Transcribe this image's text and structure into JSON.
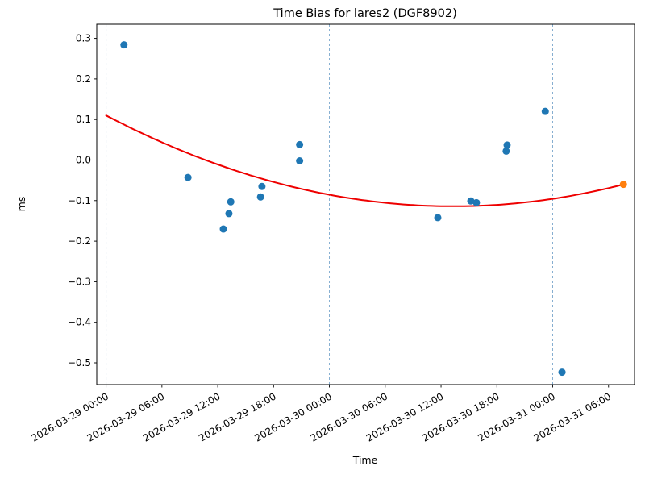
{
  "colors": {
    "point_blue": "#1f77b4",
    "point_orange": "#ff7f0e",
    "fit_red": "#ee0000",
    "day_line": "#7aa6cc",
    "zero_line": "#000000",
    "spine": "#000000"
  },
  "chart_data": {
    "type": "scatter",
    "title": "Time Bias for lares2 (DGF8902)",
    "xlabel": "Time",
    "ylabel": "ms",
    "grid": "vertical dashed lines at day boundaries only",
    "legend": "none",
    "x_axis": {
      "epoch": "2026-03-29 00:00",
      "tick_interval_hours": 6,
      "ticks": [
        {
          "label": "2026-03-29 00:00",
          "hours": 0
        },
        {
          "label": "2026-03-29 06:00",
          "hours": 6
        },
        {
          "label": "2026-03-29 12:00",
          "hours": 12
        },
        {
          "label": "2026-03-29 18:00",
          "hours": 18
        },
        {
          "label": "2026-03-30 00:00",
          "hours": 24
        },
        {
          "label": "2026-03-30 06:00",
          "hours": 30
        },
        {
          "label": "2026-03-30 12:00",
          "hours": 36
        },
        {
          "label": "2026-03-30 18:00",
          "hours": 42
        },
        {
          "label": "2026-03-31 00:00",
          "hours": 48
        },
        {
          "label": "2026-03-31 06:00",
          "hours": 54
        }
      ],
      "range_hours": [
        -1.0,
        56.8
      ],
      "tick_label_rotation_deg": 30
    },
    "y_axis": {
      "ticks": [
        {
          "label": "0.3",
          "value": 0.3
        },
        {
          "label": "0.2",
          "value": 0.2
        },
        {
          "label": "0.1",
          "value": 0.1
        },
        {
          "label": "0.0",
          "value": 0.0
        },
        {
          "label": "−0.1",
          "value": -0.1
        },
        {
          "label": "−0.2",
          "value": -0.2
        },
        {
          "label": "−0.3",
          "value": -0.3
        },
        {
          "label": "−0.4",
          "value": -0.4
        },
        {
          "label": "−0.5",
          "value": -0.5
        }
      ],
      "range": [
        -0.555,
        0.335
      ]
    },
    "day_boundaries_hours": [
      0,
      24,
      48
    ],
    "zero_line": true,
    "series": [
      {
        "name": "time-bias-residuals",
        "marker": "circle",
        "color": "#1f77b4",
        "points": [
          {
            "time": "2026-03-29 01:55",
            "hours": 1.92,
            "ms": 0.284
          },
          {
            "time": "2026-03-29 08:50",
            "hours": 8.8,
            "ms": -0.043
          },
          {
            "time": "2026-03-29 12:35",
            "hours": 12.6,
            "ms": -0.17
          },
          {
            "time": "2026-03-29 13:10",
            "hours": 13.2,
            "ms": -0.132
          },
          {
            "time": "2026-03-29 13:25",
            "hours": 13.4,
            "ms": -0.103
          },
          {
            "time": "2026-03-29 16:35",
            "hours": 16.6,
            "ms": -0.091
          },
          {
            "time": "2026-03-29 16:45",
            "hours": 16.75,
            "ms": -0.065
          },
          {
            "time": "2026-03-29 20:50",
            "hours": 20.8,
            "ms": 0.038
          },
          {
            "time": "2026-03-29 20:50",
            "hours": 20.8,
            "ms": -0.002
          },
          {
            "time": "2026-03-30 11:40",
            "hours": 35.65,
            "ms": -0.142
          },
          {
            "time": "2026-03-30 15:10",
            "hours": 39.2,
            "ms": -0.101
          },
          {
            "time": "2026-03-30 15:50",
            "hours": 39.8,
            "ms": -0.105
          },
          {
            "time": "2026-03-30 19:00",
            "hours": 43.0,
            "ms": 0.022
          },
          {
            "time": "2026-03-30 19:05",
            "hours": 43.1,
            "ms": 0.037
          },
          {
            "time": "2026-03-30 23:10",
            "hours": 47.2,
            "ms": 0.12
          },
          {
            "time": "2026-03-31 01:00",
            "hours": 49.0,
            "ms": -0.523
          }
        ]
      },
      {
        "name": "latest-point-highlight",
        "marker": "circle",
        "color": "#ff7f0e",
        "points": [
          {
            "time": "2026-03-31 07:35",
            "hours": 55.6,
            "ms": -0.06
          }
        ]
      }
    ],
    "fit_curve": {
      "name": "quadratic-fit",
      "color": "#ee0000",
      "t_start_hours": 0.0,
      "t_end_hours": 55.6,
      "ms_at_t_start": 0.11,
      "vertex_hours": 37.3,
      "vertex_ms": -0.114,
      "ms_at_t_end": -0.06
    }
  }
}
